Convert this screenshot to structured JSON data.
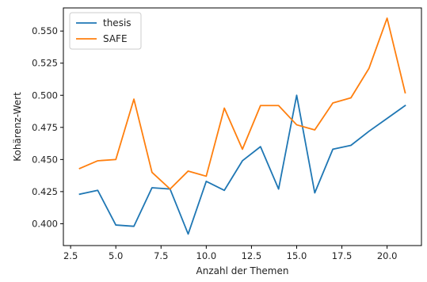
{
  "chart_data": {
    "type": "line",
    "xlabel": "Anzahl der Themen",
    "ylabel": "Kohärenz-Wert",
    "xlim": [
      2.1,
      21.9
    ],
    "ylim": [
      0.383,
      0.568
    ],
    "xticks": [
      2.5,
      5.0,
      7.5,
      10.0,
      12.5,
      15.0,
      17.5,
      20.0
    ],
    "xtick_labels": [
      "2.5",
      "5.0",
      "7.5",
      "10.0",
      "12.5",
      "15.0",
      "17.5",
      "20.0"
    ],
    "yticks": [
      0.4,
      0.425,
      0.45,
      0.475,
      0.5,
      0.525,
      0.55
    ],
    "ytick_labels": [
      "0.400",
      "0.425",
      "0.450",
      "0.475",
      "0.500",
      "0.525",
      "0.550"
    ],
    "grid": false,
    "legend_position": "top-left",
    "x": [
      3,
      4,
      5,
      6,
      7,
      8,
      9,
      10,
      11,
      12,
      13,
      14,
      15,
      16,
      17,
      18,
      19,
      20,
      21
    ],
    "series": [
      {
        "name": "thesis",
        "color": "#1f77b4",
        "values": [
          0.423,
          0.426,
          0.399,
          0.398,
          0.428,
          0.427,
          0.392,
          0.433,
          0.426,
          0.449,
          0.46,
          0.427,
          0.5,
          0.424,
          0.458,
          0.461,
          0.472,
          0.482,
          0.492
        ]
      },
      {
        "name": "SAFE",
        "color": "#ff7f0e",
        "values": [
          0.443,
          0.449,
          0.45,
          0.497,
          0.44,
          0.427,
          0.441,
          0.437,
          0.49,
          0.458,
          0.492,
          0.492,
          0.477,
          0.473,
          0.494,
          0.498,
          0.521,
          0.56,
          0.502
        ]
      }
    ]
  }
}
